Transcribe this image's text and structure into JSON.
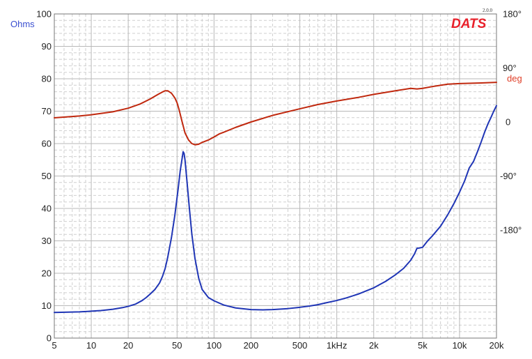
{
  "chart_data": {
    "type": "line",
    "title": "",
    "brand": "DATS",
    "version": "2.0.0",
    "y_left": {
      "label": "Ohms",
      "ylim": [
        0,
        100
      ],
      "ticks": [
        0,
        10,
        20,
        30,
        40,
        50,
        60,
        70,
        80,
        90,
        100
      ]
    },
    "y_right": {
      "label": "deg",
      "range": [
        -360,
        180
      ],
      "ticks": [
        {
          "value": 180,
          "label": "180°"
        },
        {
          "value": 90,
          "label": "90°"
        },
        {
          "value": 0,
          "label": "0"
        },
        {
          "value": -90,
          "label": "-90°"
        },
        {
          "value": -180,
          "label": "-180°"
        }
      ]
    },
    "x": {
      "scale": "log",
      "xlim": [
        5,
        20000
      ],
      "ticks": [
        {
          "value": 5,
          "label": "5"
        },
        {
          "value": 10,
          "label": "10"
        },
        {
          "value": 20,
          "label": "20"
        },
        {
          "value": 50,
          "label": "50"
        },
        {
          "value": 100,
          "label": "100"
        },
        {
          "value": 200,
          "label": "200"
        },
        {
          "value": 500,
          "label": "500"
        },
        {
          "value": 1000,
          "label": "1kHz"
        },
        {
          "value": 2000,
          "label": "2k"
        },
        {
          "value": 5000,
          "label": "5k"
        },
        {
          "value": 10000,
          "label": "10k"
        },
        {
          "value": 20000,
          "label": "20k"
        }
      ]
    },
    "grid": true,
    "colors": {
      "impedance": "#1f35b5",
      "phase": "#c0280e",
      "ohms_label": "#3a4fd0",
      "deg_label": "#e0402a",
      "brand": "#e8202a",
      "grid_major": "#b8b8b8",
      "grid_minor": "#cfcfcf"
    },
    "series": [
      {
        "key": "impedance",
        "axis": "left",
        "points": [
          [
            5,
            7.9
          ],
          [
            8,
            8.1
          ],
          [
            10,
            8.3
          ],
          [
            12,
            8.5
          ],
          [
            15,
            8.9
          ],
          [
            18,
            9.4
          ],
          [
            20,
            9.8
          ],
          [
            23,
            10.5
          ],
          [
            26,
            11.6
          ],
          [
            28,
            12.5
          ],
          [
            30,
            13.5
          ],
          [
            33,
            15.0
          ],
          [
            36,
            17.0
          ],
          [
            38,
            19.0
          ],
          [
            40,
            21.5
          ],
          [
            42,
            25.0
          ],
          [
            45,
            31.0
          ],
          [
            48,
            38.0
          ],
          [
            51,
            46.0
          ],
          [
            53,
            51.5
          ],
          [
            55,
            55.5
          ],
          [
            56,
            57.5
          ],
          [
            57,
            57.0
          ],
          [
            58,
            55.0
          ],
          [
            60,
            49.0
          ],
          [
            63,
            40.0
          ],
          [
            66,
            32.0
          ],
          [
            70,
            24.5
          ],
          [
            75,
            18.5
          ],
          [
            80,
            15.0
          ],
          [
            90,
            12.5
          ],
          [
            100,
            11.5
          ],
          [
            120,
            10.2
          ],
          [
            150,
            9.3
          ],
          [
            200,
            8.8
          ],
          [
            250,
            8.7
          ],
          [
            300,
            8.8
          ],
          [
            400,
            9.1
          ],
          [
            500,
            9.5
          ],
          [
            600,
            9.9
          ],
          [
            700,
            10.3
          ],
          [
            800,
            10.8
          ],
          [
            1000,
            11.6
          ],
          [
            1200,
            12.4
          ],
          [
            1500,
            13.6
          ],
          [
            2000,
            15.5
          ],
          [
            2500,
            17.5
          ],
          [
            3000,
            19.5
          ],
          [
            3500,
            21.5
          ],
          [
            4000,
            24.0
          ],
          [
            4300,
            26.0
          ],
          [
            4500,
            27.7
          ],
          [
            4700,
            27.8
          ],
          [
            5000,
            28.0
          ],
          [
            5500,
            30.0
          ],
          [
            6000,
            31.5
          ],
          [
            7000,
            34.5
          ],
          [
            8000,
            38.0
          ],
          [
            9000,
            41.5
          ],
          [
            10000,
            45.0
          ],
          [
            11000,
            48.5
          ],
          [
            12000,
            52.5
          ],
          [
            12500,
            53.5
          ],
          [
            13000,
            54.5
          ],
          [
            14000,
            57.5
          ],
          [
            15000,
            60.5
          ],
          [
            16000,
            63.5
          ],
          [
            17000,
            66.0
          ],
          [
            18000,
            68.0
          ],
          [
            19000,
            70.0
          ],
          [
            20000,
            71.7
          ]
        ]
      },
      {
        "key": "phase",
        "axis": "right",
        "points": [
          [
            5,
            7
          ],
          [
            8,
            10
          ],
          [
            10,
            12
          ],
          [
            15,
            17
          ],
          [
            20,
            23
          ],
          [
            25,
            30
          ],
          [
            30,
            38
          ],
          [
            35,
            46
          ],
          [
            38,
            50
          ],
          [
            40,
            52
          ],
          [
            42,
            52
          ],
          [
            45,
            48
          ],
          [
            48,
            40
          ],
          [
            50,
            32
          ],
          [
            52,
            20
          ],
          [
            55,
            0
          ],
          [
            58,
            -18
          ],
          [
            62,
            -30
          ],
          [
            66,
            -36
          ],
          [
            70,
            -38
          ],
          [
            75,
            -37
          ],
          [
            80,
            -34
          ],
          [
            90,
            -30
          ],
          [
            100,
            -25
          ],
          [
            110,
            -20
          ],
          [
            120,
            -17
          ],
          [
            150,
            -9
          ],
          [
            200,
            0
          ],
          [
            300,
            11
          ],
          [
            500,
            22
          ],
          [
            700,
            29
          ],
          [
            1000,
            35
          ],
          [
            1500,
            41
          ],
          [
            2000,
            46
          ],
          [
            3000,
            52
          ],
          [
            4000,
            56
          ],
          [
            4500,
            55
          ],
          [
            5000,
            56
          ],
          [
            6000,
            59
          ],
          [
            8000,
            63
          ],
          [
            10000,
            64
          ],
          [
            15000,
            65
          ],
          [
            20000,
            66
          ]
        ]
      }
    ]
  }
}
